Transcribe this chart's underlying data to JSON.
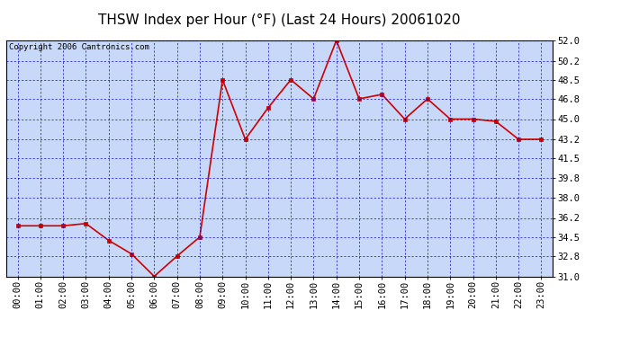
{
  "title": "THSW Index per Hour (°F) (Last 24 Hours) 20061020",
  "copyright": "Copyright 2006 Cantronics.com",
  "x_labels": [
    "00:00",
    "01:00",
    "02:00",
    "03:00",
    "04:00",
    "05:00",
    "06:00",
    "07:00",
    "08:00",
    "09:00",
    "10:00",
    "11:00",
    "12:00",
    "13:00",
    "14:00",
    "15:00",
    "16:00",
    "17:00",
    "18:00",
    "19:00",
    "20:00",
    "21:00",
    "22:00",
    "23:00"
  ],
  "y_values": [
    35.5,
    35.5,
    35.5,
    35.7,
    34.2,
    33.0,
    31.0,
    32.8,
    34.5,
    48.5,
    43.2,
    46.0,
    48.5,
    46.8,
    52.0,
    46.8,
    47.2,
    45.0,
    46.8,
    45.0,
    45.0,
    44.8,
    43.2,
    43.2
  ],
  "y_min": 31.0,
  "y_max": 52.0,
  "y_ticks": [
    31.0,
    32.8,
    34.5,
    36.2,
    38.0,
    39.8,
    41.5,
    43.2,
    45.0,
    46.8,
    48.5,
    50.2,
    52.0
  ],
  "line_color": "#cc0000",
  "marker_color": "#cc0000",
  "bg_color": "#c8d8f8",
  "outer_bg_color": "#ffffff",
  "grid_color": "#0000cc",
  "title_color": "#000000",
  "copyright_color": "#000000",
  "title_fontsize": 11,
  "copyright_fontsize": 6.5,
  "tick_fontsize": 7.5
}
